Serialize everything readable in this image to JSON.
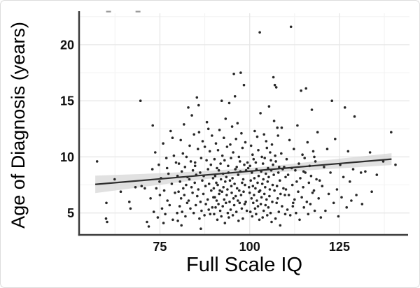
{
  "chart_data": {
    "type": "scatter",
    "title": "",
    "xlabel": "Full Scale IQ",
    "ylabel": "Age of Diagnosis (years)",
    "xlim": [
      52.5,
      144.5
    ],
    "ylim": [
      3.05,
      22.8
    ],
    "grid": true,
    "legend": "none",
    "x_ticks": {
      "major": [
        {
          "v": 75,
          "label": "75"
        },
        {
          "v": 100,
          "label": "100"
        },
        {
          "v": 125,
          "label": "125"
        }
      ],
      "minor": [
        62.5,
        87.5,
        112.5,
        137.5
      ]
    },
    "y_ticks": {
      "major": [
        {
          "v": 5,
          "label": "5"
        },
        {
          "v": 10,
          "label": "10"
        },
        {
          "v": 15,
          "label": "15"
        },
        {
          "v": 20,
          "label": "20"
        }
      ],
      "minor": [
        7.5,
        12.5,
        17.5,
        22.5
      ]
    },
    "colors": {
      "point": "#1c1c1c",
      "trend": "#2e2e2e",
      "band": "#c9c9c9",
      "grid_major": "#e7e7e7",
      "grid_minor": "#f3f3f3",
      "axis": "#3c3c3c",
      "text": "#000000",
      "frame_border": "#dcdcdc"
    },
    "trend": {
      "x": [
        57,
        70,
        85,
        98,
        110,
        125,
        139.5
      ],
      "y": [
        7.55,
        7.9,
        8.31,
        8.67,
        9.0,
        9.41,
        9.8
      ]
    },
    "band": {
      "x": [
        57,
        70,
        85,
        98,
        110,
        125,
        139.5
      ],
      "upper": [
        8.33,
        8.48,
        8.7,
        8.95,
        9.32,
        9.84,
        10.33
      ],
      "lower": [
        6.77,
        7.32,
        7.92,
        8.39,
        8.68,
        8.98,
        9.27
      ]
    },
    "clipped_points": {
      "age": 22.9,
      "iq": [
        60.7,
        68.9
      ]
    },
    "points": [
      [
        57.5,
        9.6
      ],
      [
        60.1,
        5.9
      ],
      [
        60.0,
        4.5
      ],
      [
        60.3,
        4.2
      ],
      [
        62.4,
        8.0
      ],
      [
        64.1,
        6.9
      ],
      [
        66.5,
        6.0
      ],
      [
        66.8,
        5.4
      ],
      [
        68.2,
        7.3
      ],
      [
        69.6,
        15.0
      ],
      [
        69.9,
        7.4
      ],
      [
        70.8,
        7.2
      ],
      [
        71.4,
        4.2
      ],
      [
        71.9,
        3.8
      ],
      [
        72.4,
        6.3
      ],
      [
        72.9,
        8.9
      ],
      [
        73.3,
        5.1
      ],
      [
        73.7,
        10.4
      ],
      [
        74.0,
        7.2
      ],
      [
        74.4,
        4.6
      ],
      [
        74.7,
        9.3
      ],
      [
        75.0,
        6.6
      ],
      [
        75.3,
        8.1
      ],
      [
        75.6,
        5.4
      ],
      [
        75.9,
        11.2
      ],
      [
        76.2,
        7.0
      ],
      [
        76.5,
        4.9
      ],
      [
        76.8,
        9.9
      ],
      [
        77.1,
        6.1
      ],
      [
        77.4,
        8.5
      ],
      [
        77.7,
        5.7
      ],
      [
        78.0,
        12.3
      ],
      [
        78.3,
        7.6
      ],
      [
        78.6,
        4.4
      ],
      [
        78.9,
        10.1
      ],
      [
        79.2,
        6.8
      ],
      [
        79.5,
        9.5
      ],
      [
        79.8,
        5.0
      ],
      [
        73.0,
        12.8
      ],
      [
        74.9,
        7.8
      ],
      [
        76.0,
        4.1
      ],
      [
        77.0,
        9.0
      ],
      [
        78.5,
        11.7
      ],
      [
        79.9,
        8.3
      ],
      [
        80.0,
        4.3
      ],
      [
        80.2,
        6.9
      ],
      [
        80.3,
        9.4
      ],
      [
        80.5,
        5.6
      ],
      [
        80.6,
        7.8
      ],
      [
        80.8,
        11.5
      ],
      [
        80.9,
        6.3
      ],
      [
        81.1,
        8.7
      ],
      [
        81.2,
        5.1
      ],
      [
        81.4,
        10.3
      ],
      [
        81.5,
        7.2
      ],
      [
        81.7,
        12.9
      ],
      [
        81.8,
        6.6
      ],
      [
        82.0,
        9.1
      ],
      [
        82.1,
        4.7
      ],
      [
        82.3,
        7.5
      ],
      [
        82.4,
        10.0
      ],
      [
        82.6,
        5.9
      ],
      [
        82.7,
        8.2
      ],
      [
        82.9,
        14.4
      ],
      [
        83.0,
        6.1
      ],
      [
        83.2,
        8.0
      ],
      [
        83.3,
        11.0
      ],
      [
        83.5,
        5.4
      ],
      [
        83.6,
        9.6
      ],
      [
        83.8,
        7.3
      ],
      [
        83.9,
        13.7
      ],
      [
        84.1,
        6.8
      ],
      [
        84.2,
        8.8
      ],
      [
        84.4,
        5.0
      ],
      [
        84.5,
        12.0
      ],
      [
        84.7,
        7.7
      ],
      [
        84.8,
        9.2
      ],
      [
        85.0,
        5.7
      ],
      [
        85.1,
        8.4
      ],
      [
        85.3,
        15.3
      ],
      [
        85.4,
        6.5
      ],
      [
        85.6,
        10.7
      ],
      [
        85.7,
        7.1
      ],
      [
        85.9,
        12.2
      ],
      [
        86.0,
        4.5
      ],
      [
        86.2,
        8.6
      ],
      [
        86.3,
        6.0
      ],
      [
        86.5,
        9.9
      ],
      [
        86.6,
        5.2
      ],
      [
        86.8,
        7.9
      ],
      [
        86.9,
        11.4
      ],
      [
        87.1,
        6.7
      ],
      [
        87.2,
        8.3
      ],
      [
        87.4,
        4.8
      ],
      [
        87.5,
        10.9
      ],
      [
        87.7,
        7.4
      ],
      [
        87.8,
        5.8
      ],
      [
        88.0,
        9.7
      ],
      [
        88.1,
        13.1
      ],
      [
        88.3,
        6.2
      ],
      [
        88.4,
        8.9
      ],
      [
        88.6,
        5.3
      ],
      [
        88.7,
        7.6
      ],
      [
        88.9,
        10.5
      ],
      [
        89.0,
        4.9
      ],
      [
        89.2,
        9.3
      ],
      [
        89.3,
        7.0
      ],
      [
        89.5,
        11.9
      ],
      [
        89.6,
        5.5
      ],
      [
        89.8,
        8.1
      ],
      [
        89.9,
        6.4
      ],
      [
        88.5,
        12.5
      ],
      [
        85.8,
        14.6
      ],
      [
        84.8,
        9.5
      ],
      [
        81.0,
        3.9
      ],
      [
        86.4,
        3.6
      ],
      [
        90.0,
        7.2
      ],
      [
        90.1,
        4.9
      ],
      [
        90.2,
        9.8
      ],
      [
        90.3,
        6.4
      ],
      [
        90.4,
        8.3
      ],
      [
        90.5,
        5.5
      ],
      [
        90.6,
        11.2
      ],
      [
        90.7,
        7.7
      ],
      [
        90.8,
        6.1
      ],
      [
        90.9,
        9.0
      ],
      [
        91.0,
        4.4
      ],
      [
        91.1,
        7.5
      ],
      [
        91.2,
        10.6
      ],
      [
        91.3,
        5.8
      ],
      [
        91.4,
        8.8
      ],
      [
        91.5,
        6.7
      ],
      [
        91.6,
        12.4
      ],
      [
        91.7,
        7.0
      ],
      [
        91.8,
        5.2
      ],
      [
        91.9,
        9.4
      ],
      [
        92.0,
        8.0
      ],
      [
        92.1,
        4.7
      ],
      [
        92.2,
        15.0
      ],
      [
        92.3,
        6.9
      ],
      [
        92.4,
        10.1
      ],
      [
        92.5,
        5.6
      ],
      [
        92.6,
        8.5
      ],
      [
        92.7,
        7.3
      ],
      [
        92.8,
        11.7
      ],
      [
        92.9,
        6.2
      ],
      [
        93.0,
        9.7
      ],
      [
        93.1,
        4.1
      ],
      [
        93.2,
        7.8
      ],
      [
        93.3,
        13.4
      ],
      [
        93.4,
        5.9
      ],
      [
        93.5,
        8.2
      ],
      [
        93.6,
        6.6
      ],
      [
        93.7,
        10.9
      ],
      [
        93.8,
        7.1
      ],
      [
        93.9,
        5.0
      ],
      [
        94.0,
        9.2
      ],
      [
        94.1,
        8.6
      ],
      [
        94.2,
        4.6
      ],
      [
        94.3,
        14.8
      ],
      [
        94.4,
        6.0
      ],
      [
        94.5,
        7.9
      ],
      [
        94.6,
        11.1
      ],
      [
        94.7,
        5.3
      ],
      [
        94.8,
        9.9
      ],
      [
        94.9,
        7.4
      ],
      [
        95.0,
        6.8
      ],
      [
        95.1,
        12.7
      ],
      [
        95.2,
        8.1
      ],
      [
        95.3,
        4.8
      ],
      [
        95.4,
        10.4
      ],
      [
        95.5,
        6.3
      ],
      [
        95.6,
        17.4
      ],
      [
        95.7,
        5.7
      ],
      [
        95.8,
        7.6
      ],
      [
        95.9,
        15.4
      ],
      [
        96.0,
        8.9
      ],
      [
        96.1,
        6.5
      ],
      [
        96.2,
        11.6
      ],
      [
        96.3,
        5.1
      ],
      [
        96.4,
        9.1
      ],
      [
        96.5,
        7.2
      ],
      [
        96.6,
        13.0
      ],
      [
        96.7,
        6.1
      ],
      [
        96.8,
        8.4
      ],
      [
        96.9,
        4.3
      ],
      [
        97.0,
        10.0
      ],
      [
        97.1,
        7.0
      ],
      [
        97.2,
        5.9
      ],
      [
        97.3,
        9.6
      ],
      [
        97.4,
        8.7
      ],
      [
        97.5,
        17.5
      ],
      [
        97.6,
        6.6
      ],
      [
        97.7,
        12.1
      ],
      [
        97.8,
        5.4
      ],
      [
        97.9,
        7.7
      ],
      [
        98.0,
        10.8
      ],
      [
        98.1,
        4.5
      ],
      [
        98.2,
        8.0
      ],
      [
        98.3,
        6.9
      ],
      [
        98.4,
        16.4
      ],
      [
        98.5,
        9.3
      ],
      [
        98.6,
        5.8
      ],
      [
        98.7,
        7.5
      ],
      [
        98.8,
        11.3
      ],
      [
        98.9,
        6.0
      ],
      [
        99.0,
        8.8
      ],
      [
        99.2,
        5.2
      ],
      [
        99.4,
        9.5
      ],
      [
        99.6,
        9.0
      ],
      [
        99.8,
        7.3
      ],
      [
        100.0,
        6.8
      ],
      [
        100.1,
        9.2
      ],
      [
        100.2,
        5.1
      ],
      [
        100.3,
        7.9
      ],
      [
        100.4,
        11.0
      ],
      [
        100.5,
        6.3
      ],
      [
        100.6,
        8.6
      ],
      [
        100.7,
        4.7
      ],
      [
        100.8,
        10.2
      ],
      [
        100.9,
        7.4
      ],
      [
        101.0,
        5.9
      ],
      [
        101.1,
        9.8
      ],
      [
        101.2,
        6.6
      ],
      [
        101.3,
        8.1
      ],
      [
        101.4,
        12.3
      ],
      [
        101.5,
        5.4
      ],
      [
        101.6,
        7.2
      ],
      [
        101.7,
        9.5
      ],
      [
        101.8,
        4.9
      ],
      [
        101.9,
        8.9
      ],
      [
        102.0,
        6.1
      ],
      [
        102.1,
        11.8
      ],
      [
        102.2,
        7.7
      ],
      [
        102.3,
        5.6
      ],
      [
        102.4,
        10.6
      ],
      [
        102.5,
        8.3
      ],
      [
        102.6,
        6.9
      ],
      [
        102.7,
        4.4
      ],
      [
        102.8,
        21.1
      ],
      [
        102.9,
        7.0
      ],
      [
        103.0,
        13.9
      ],
      [
        103.1,
        5.8
      ],
      [
        103.2,
        8.7
      ],
      [
        103.3,
        6.4
      ],
      [
        103.4,
        10.0
      ],
      [
        103.5,
        7.6
      ],
      [
        103.6,
        4.6
      ],
      [
        103.7,
        9.4
      ],
      [
        103.8,
        8.0
      ],
      [
        103.9,
        5.2
      ],
      [
        104.0,
        12.0
      ],
      [
        104.1,
        6.7
      ],
      [
        104.2,
        9.9
      ],
      [
        104.3,
        7.3
      ],
      [
        104.4,
        5.7
      ],
      [
        104.5,
        8.5
      ],
      [
        104.6,
        11.4
      ],
      [
        104.7,
        6.2
      ],
      [
        104.8,
        10.8
      ],
      [
        104.9,
        4.8
      ],
      [
        105.0,
        7.8
      ],
      [
        105.1,
        9.0
      ],
      [
        105.2,
        5.5
      ],
      [
        105.3,
        8.2
      ],
      [
        105.4,
        14.5
      ],
      [
        105.5,
        6.5
      ],
      [
        105.6,
        7.1
      ],
      [
        105.7,
        10.4
      ],
      [
        105.8,
        5.0
      ],
      [
        105.9,
        9.7
      ],
      [
        106.0,
        8.8
      ],
      [
        106.1,
        4.2
      ],
      [
        106.2,
        11.1
      ],
      [
        106.3,
        6.0
      ],
      [
        106.4,
        7.5
      ],
      [
        106.5,
        9.3
      ],
      [
        106.6,
        17.1
      ],
      [
        106.7,
        8.4
      ],
      [
        106.8,
        13.2
      ],
      [
        106.9,
        7.0
      ],
      [
        107.0,
        16.4
      ],
      [
        107.1,
        10.1
      ],
      [
        107.2,
        4.5
      ],
      [
        107.3,
        9.6
      ],
      [
        107.4,
        16.2
      ],
      [
        107.5,
        5.9
      ],
      [
        107.6,
        7.4
      ],
      [
        107.7,
        12.6
      ],
      [
        107.8,
        6.3
      ],
      [
        107.9,
        11.9
      ],
      [
        108.0,
        8.6
      ],
      [
        108.1,
        5.1
      ],
      [
        108.2,
        9.1
      ],
      [
        108.4,
        7.9
      ],
      [
        108.6,
        6.7
      ],
      [
        108.8,
        10.3
      ],
      [
        109.0,
        5.6
      ],
      [
        109.2,
        8.9
      ],
      [
        109.4,
        7.2
      ],
      [
        109.6,
        9.1
      ],
      [
        109.8,
        6.6
      ],
      [
        110.0,
        8.2
      ],
      [
        109.9,
        4.9
      ],
      [
        108.9,
        12.6
      ],
      [
        108.5,
        3.9
      ],
      [
        110.1,
        7.1
      ],
      [
        110.3,
        9.8
      ],
      [
        110.5,
        5.3
      ],
      [
        110.7,
        8.4
      ],
      [
        110.9,
        6.6
      ],
      [
        111.1,
        11.5
      ],
      [
        111.3,
        4.8
      ],
      [
        111.5,
        21.6
      ],
      [
        111.7,
        9.0
      ],
      [
        111.9,
        7.5
      ],
      [
        112.1,
        5.9
      ],
      [
        112.3,
        10.7
      ],
      [
        112.5,
        6.2
      ],
      [
        112.7,
        8.8
      ],
      [
        112.9,
        5.0
      ],
      [
        113.1,
        7.8
      ],
      [
        113.3,
        12.8
      ],
      [
        113.5,
        6.9
      ],
      [
        113.7,
        9.4
      ],
      [
        113.9,
        4.4
      ],
      [
        114.1,
        8.1
      ],
      [
        114.3,
        15.9
      ],
      [
        114.5,
        6.4
      ],
      [
        114.7,
        10.2
      ],
      [
        114.9,
        7.3
      ],
      [
        115.1,
        5.5
      ],
      [
        115.3,
        9.9
      ],
      [
        115.5,
        8.6
      ],
      [
        115.7,
        16.1
      ],
      [
        115.9,
        6.0
      ],
      [
        116.1,
        11.3
      ],
      [
        116.3,
        4.9
      ],
      [
        116.5,
        7.7
      ],
      [
        116.7,
        9.2
      ],
      [
        116.9,
        5.8
      ],
      [
        117.1,
        8.3
      ],
      [
        117.3,
        14.2
      ],
      [
        117.5,
        6.8
      ],
      [
        117.7,
        10.5
      ],
      [
        117.9,
        7.0
      ],
      [
        118.1,
        5.2
      ],
      [
        118.3,
        9.6
      ],
      [
        118.6,
        8.0
      ],
      [
        118.9,
        12.2
      ],
      [
        119.2,
        6.3
      ],
      [
        119.5,
        7.9
      ],
      [
        119.8,
        4.6
      ],
      [
        118.0,
        10.0
      ],
      [
        115.0,
        8.7
      ],
      [
        112.0,
        5.6
      ],
      [
        120.2,
        7.4
      ],
      [
        120.7,
        9.1
      ],
      [
        121.1,
        5.2
      ],
      [
        121.6,
        10.7
      ],
      [
        122.0,
        6.7
      ],
      [
        122.5,
        8.6
      ],
      [
        122.9,
        15.0
      ],
      [
        123.4,
        5.9
      ],
      [
        123.8,
        11.6
      ],
      [
        124.3,
        7.1
      ],
      [
        124.7,
        4.7
      ],
      [
        125.2,
        9.3
      ],
      [
        125.6,
        6.4
      ],
      [
        126.1,
        8.2
      ],
      [
        126.5,
        14.4
      ],
      [
        127.0,
        5.5
      ],
      [
        127.4,
        10.5
      ],
      [
        127.9,
        7.8
      ],
      [
        128.3,
        6.1
      ],
      [
        128.8,
        8.9
      ],
      [
        129.2,
        13.6
      ],
      [
        129.7,
        6.6
      ],
      [
        131.0,
        8.6
      ],
      [
        132.2,
        8.7
      ],
      [
        131.3,
        5.8
      ],
      [
        133.5,
        10.4
      ],
      [
        135.4,
        8.4
      ],
      [
        137.2,
        9.6
      ],
      [
        139.4,
        12.2
      ],
      [
        140.6,
        9.3
      ],
      [
        134.0,
        6.9
      ]
    ]
  }
}
